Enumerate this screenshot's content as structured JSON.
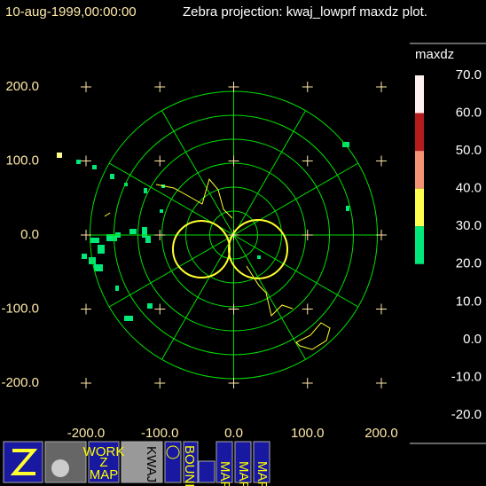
{
  "chart_data": {
    "type": "radar-map",
    "title": "10-aug-1999,00:00:00",
    "subtitle": "Zebra projection: kwaj_lowprf maxdz plot.",
    "xlim": [
      -200,
      200
    ],
    "ylim": [
      -200,
      200
    ],
    "xticks": [
      {
        "value": -200,
        "label": "-200.0"
      },
      {
        "value": -100,
        "label": "-100.0"
      },
      {
        "value": 0,
        "label": "0.0"
      },
      {
        "value": 100,
        "label": "100.0"
      },
      {
        "value": 200,
        "label": "200.0"
      }
    ],
    "yticks": [
      {
        "value": 200,
        "label": "200.0"
      },
      {
        "value": 100,
        "label": "100.0"
      },
      {
        "value": 0,
        "label": "0.0"
      },
      {
        "value": -100,
        "label": "-100.0"
      },
      {
        "value": -200,
        "label": "-200.0"
      }
    ],
    "colorbar": {
      "title": "maxdz",
      "ticks": [
        {
          "value": 70,
          "label": "70.0"
        },
        {
          "value": 60,
          "label": "60.0"
        },
        {
          "value": 50,
          "label": "50.0"
        },
        {
          "value": 40,
          "label": "40.0"
        },
        {
          "value": 30,
          "label": "30.0"
        },
        {
          "value": 20,
          "label": "20.0"
        },
        {
          "value": 10,
          "label": "10.0"
        },
        {
          "value": 0,
          "label": "0.0"
        },
        {
          "value": -10,
          "label": "-10.0"
        },
        {
          "value": -20,
          "label": "-20.0"
        }
      ],
      "colors": [
        "#fff0f0",
        "#b41c1c",
        "#f49274",
        "#ffff50",
        "#00e87a"
      ]
    },
    "toolbar": {
      "work_map": [
        "WORK",
        "Z",
        "MAP"
      ],
      "kwaj": "KWAJ",
      "bounds": "BOUNDS",
      "maps": [
        "MAP",
        "MAP",
        "MAP"
      ]
    }
  }
}
